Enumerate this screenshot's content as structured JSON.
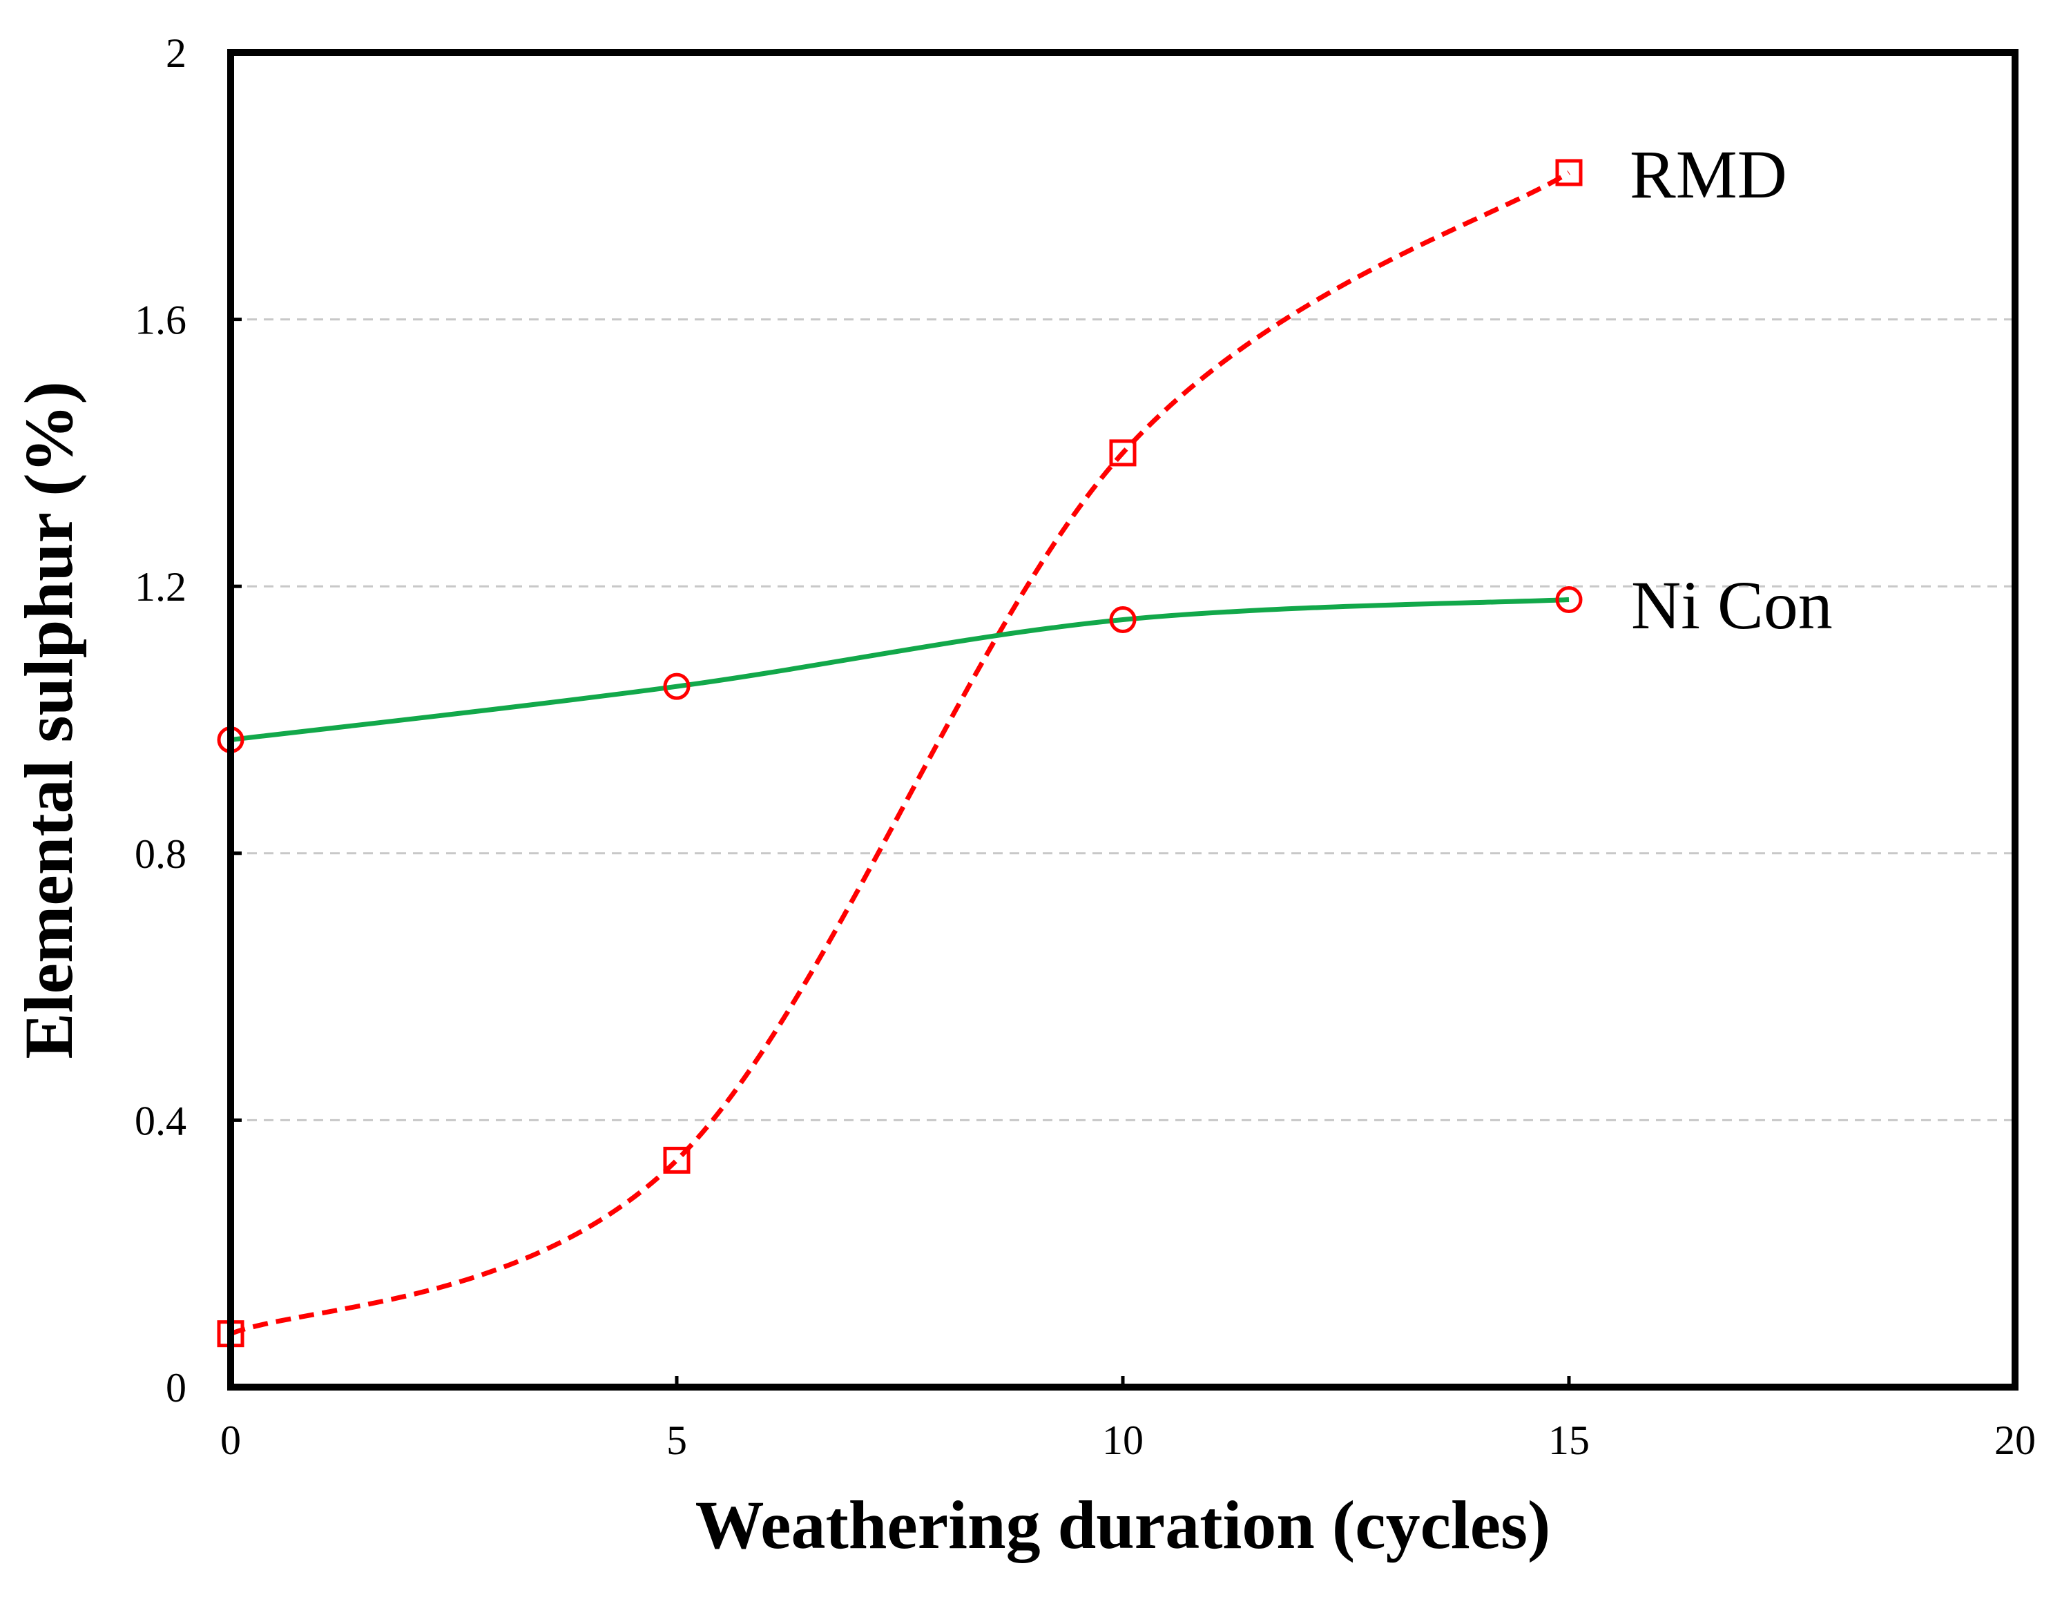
{
  "chart_data": {
    "type": "line",
    "title": "",
    "xlabel": "Weathering duration (cycles)",
    "ylabel": "Elemental sulphur (%)",
    "xlim": [
      0,
      20
    ],
    "ylim": [
      0,
      2
    ],
    "xticks": [
      0,
      5,
      10,
      15,
      20
    ],
    "yticks": [
      0,
      0.4,
      0.8,
      1.2,
      1.6,
      2
    ],
    "xtick_labels": [
      "0",
      "5",
      "10",
      "15",
      "20"
    ],
    "ytick_labels": [
      "0",
      "0.4",
      "0.8",
      "1.2",
      "1.6",
      "2"
    ],
    "grid": "horizontal dashed",
    "series": [
      {
        "name": "RMD",
        "x": [
          0,
          5,
          10,
          15
        ],
        "values": [
          0.08,
          0.34,
          1.4,
          1.82
        ],
        "line_color": "#ff0000",
        "line_style": "dashed",
        "marker": "square",
        "marker_color": "#ff0000"
      },
      {
        "name": "Ni Con",
        "x": [
          0,
          5,
          10,
          15
        ],
        "values": [
          0.97,
          1.05,
          1.15,
          1.18
        ],
        "line_color": "#12a84a",
        "line_style": "solid",
        "marker": "circle",
        "marker_color": "#ff0000"
      }
    ]
  }
}
